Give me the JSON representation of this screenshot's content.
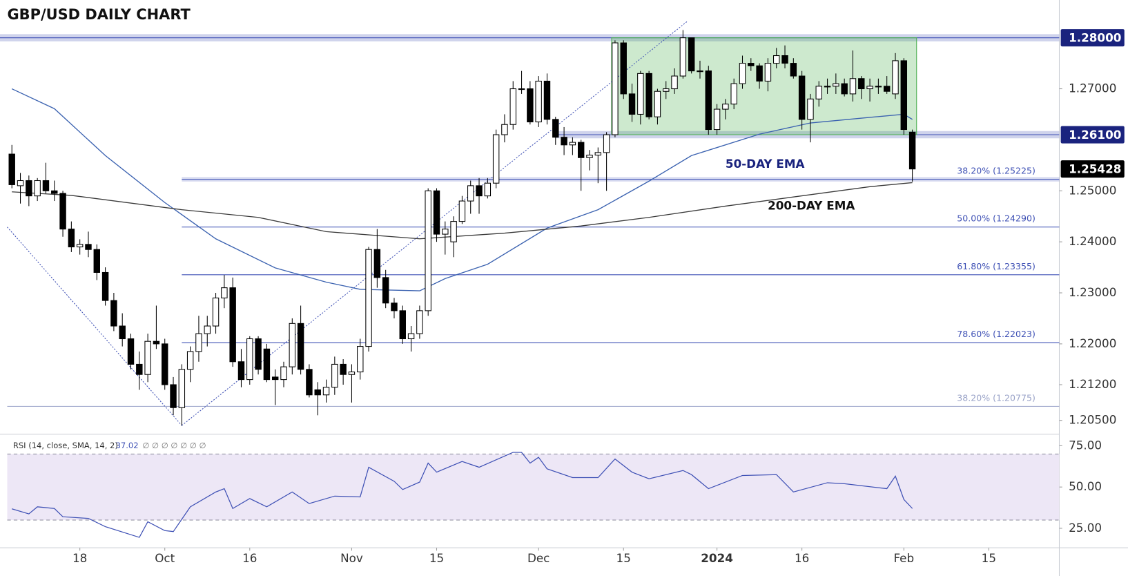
{
  "chart_data": [
    {
      "type": "candlestick",
      "title": "GBP/USD DAILY CHART",
      "up_color": "#ffffff",
      "down_color": "#000000",
      "xlim": [
        -1.4,
        123.3
      ],
      "ylim": [
        1.2023,
        1.2874
      ],
      "xticks": [
        {
          "value": 8,
          "label": "18"
        },
        {
          "value": 18,
          "label": "Oct"
        },
        {
          "value": 28,
          "label": "16"
        },
        {
          "value": 40,
          "label": "Nov"
        },
        {
          "value": 50,
          "label": "15"
        },
        {
          "value": 62,
          "label": "Dec"
        },
        {
          "value": 72,
          "label": "15"
        },
        {
          "value": 83,
          "label": "2024"
        },
        {
          "value": 93,
          "label": "16"
        },
        {
          "value": 105,
          "label": "Feb"
        },
        {
          "value": 115,
          "label": "15"
        }
      ],
      "yticks": [
        {
          "value": 1.27,
          "label": "1.27000"
        },
        {
          "value": 1.25,
          "label": "1.25000"
        },
        {
          "value": 1.24,
          "label": "1.24000"
        },
        {
          "value": 1.23,
          "label": "1.23000"
        },
        {
          "value": 1.22,
          "label": "1.22000"
        },
        {
          "value": 1.212,
          "label": "1.21200"
        },
        {
          "value": 1.205,
          "label": "1.20500"
        }
      ],
      "levels": [
        {
          "value": 1.28,
          "label": "1.28000"
        },
        {
          "value": 1.261,
          "label": "1.26100"
        }
      ],
      "last_price": {
        "value": 1.25428,
        "label": "1.25428"
      },
      "fib_levels": [
        {
          "value": 1.25225,
          "label": "38.20% (1.25225)",
          "color": "#3f51b5"
        },
        {
          "value": 1.2429,
          "label": "50.00% (1.24290)",
          "color": "#3f51b5"
        },
        {
          "value": 1.23355,
          "label": "61.80% (1.23355)",
          "color": "#3f51b5"
        },
        {
          "value": 1.22023,
          "label": "78.60% (1.22023)",
          "color": "#3f51b5"
        },
        {
          "value": 1.20775,
          "label": "38.20% (1.20775)",
          "color": "#9aa3c8"
        }
      ],
      "lines": [
        {
          "name": "50-DAY EMA",
          "color": "#3b62b0",
          "x": [
            0,
            5,
            11,
            18,
            24,
            31,
            37,
            41,
            48,
            51,
            56,
            63,
            69,
            75,
            80,
            88,
            94,
            101,
            105,
            106
          ],
          "values": [
            1.27,
            1.2661,
            1.2569,
            1.2477,
            1.2406,
            1.2349,
            1.2321,
            1.2307,
            1.2304,
            1.2328,
            1.2356,
            1.2427,
            1.2463,
            1.2519,
            1.2569,
            1.2611,
            1.2633,
            1.2644,
            1.265,
            1.264
          ]
        },
        {
          "name": "200-DAY EMA",
          "color": "#3a3a3a",
          "x": [
            0,
            7,
            20,
            29,
            37,
            48,
            58,
            67,
            75,
            84,
            92,
            101,
            106
          ],
          "values": [
            1.2498,
            1.2491,
            1.2463,
            1.2448,
            1.242,
            1.2406,
            1.2417,
            1.2431,
            1.2448,
            1.247,
            1.2488,
            1.2508,
            1.2516
          ]
        }
      ],
      "candles": [
        [
          1.2572,
          1.259,
          1.2505,
          1.2512
        ],
        [
          1.251,
          1.2535,
          1.2475,
          1.252
        ],
        [
          1.252,
          1.253,
          1.247,
          1.249
        ],
        [
          1.249,
          1.2525,
          1.248,
          1.252
        ],
        [
          1.252,
          1.2555,
          1.2495,
          1.25
        ],
        [
          1.25,
          1.252,
          1.248,
          1.2495
        ],
        [
          1.2495,
          1.25,
          1.241,
          1.2425
        ],
        [
          1.2425,
          1.244,
          1.238,
          1.239
        ],
        [
          1.239,
          1.2405,
          1.2375,
          1.2395
        ],
        [
          1.2395,
          1.242,
          1.237,
          1.2385
        ],
        [
          1.2385,
          1.2395,
          1.2325,
          1.234
        ],
        [
          1.234,
          1.235,
          1.2275,
          1.2285
        ],
        [
          1.2285,
          1.23,
          1.2225,
          1.2235
        ],
        [
          1.2235,
          1.226,
          1.2195,
          1.221
        ],
        [
          1.221,
          1.222,
          1.215,
          1.216
        ],
        [
          1.216,
          1.2185,
          1.211,
          1.214
        ],
        [
          1.214,
          1.222,
          1.2125,
          1.2205
        ],
        [
          1.2205,
          1.2275,
          1.219,
          1.22
        ],
        [
          1.22,
          1.221,
          1.211,
          1.212
        ],
        [
          1.212,
          1.2135,
          1.206,
          1.2075
        ],
        [
          1.2075,
          1.216,
          1.204,
          1.215
        ],
        [
          1.215,
          1.2195,
          1.2125,
          1.2185
        ],
        [
          1.2185,
          1.2255,
          1.2165,
          1.222
        ],
        [
          1.222,
          1.2255,
          1.2195,
          1.2235
        ],
        [
          1.2235,
          1.23,
          1.222,
          1.229
        ],
        [
          1.229,
          1.2335,
          1.227,
          1.231
        ],
        [
          1.231,
          1.233,
          1.2155,
          1.2165
        ],
        [
          1.2165,
          1.219,
          1.2115,
          1.213
        ],
        [
          1.213,
          1.2215,
          1.212,
          1.221
        ],
        [
          1.221,
          1.2215,
          1.214,
          1.215
        ],
        [
          1.219,
          1.22,
          1.2125,
          1.213
        ],
        [
          1.2135,
          1.215,
          1.208,
          1.213
        ],
        [
          1.213,
          1.2165,
          1.2115,
          1.2155
        ],
        [
          1.2155,
          1.225,
          1.214,
          1.224
        ],
        [
          1.224,
          1.2275,
          1.214,
          1.215
        ],
        [
          1.215,
          1.216,
          1.2095,
          1.21
        ],
        [
          1.211,
          1.2125,
          1.206,
          1.21
        ],
        [
          1.21,
          1.213,
          1.2085,
          1.2115
        ],
        [
          1.2115,
          1.2175,
          1.21,
          1.216
        ],
        [
          1.216,
          1.217,
          1.212,
          1.214
        ],
        [
          1.214,
          1.216,
          1.2085,
          1.2145
        ],
        [
          1.2145,
          1.221,
          1.213,
          1.2195
        ],
        [
          1.2195,
          1.239,
          1.2185,
          1.2385
        ],
        [
          1.2385,
          1.2425,
          1.231,
          1.233
        ],
        [
          1.233,
          1.2345,
          1.227,
          1.228
        ],
        [
          1.228,
          1.229,
          1.225,
          1.2265
        ],
        [
          1.2265,
          1.2275,
          1.22,
          1.221
        ],
        [
          1.221,
          1.2235,
          1.2185,
          1.222
        ],
        [
          1.222,
          1.2275,
          1.221,
          1.2265
        ],
        [
          1.2265,
          1.2505,
          1.2255,
          1.25
        ],
        [
          1.25,
          1.2505,
          1.24,
          1.2415
        ],
        [
          1.2415,
          1.244,
          1.2375,
          1.2425
        ],
        [
          1.24,
          1.245,
          1.237,
          1.244
        ],
        [
          1.244,
          1.249,
          1.2435,
          1.248
        ],
        [
          1.248,
          1.252,
          1.2455,
          1.251
        ],
        [
          1.251,
          1.2525,
          1.2455,
          1.249
        ],
        [
          1.249,
          1.2525,
          1.2485,
          1.2515
        ],
        [
          1.2515,
          1.262,
          1.2505,
          1.261
        ],
        [
          1.261,
          1.265,
          1.2595,
          1.263
        ],
        [
          1.263,
          1.2715,
          1.262,
          1.27
        ],
        [
          1.27,
          1.2735,
          1.269,
          1.27
        ],
        [
          1.27,
          1.2715,
          1.263,
          1.2635
        ],
        [
          1.2635,
          1.2725,
          1.2625,
          1.2715
        ],
        [
          1.2715,
          1.273,
          1.263,
          1.264
        ],
        [
          1.264,
          1.2645,
          1.259,
          1.2605
        ],
        [
          1.2605,
          1.2625,
          1.257,
          1.259
        ],
        [
          1.259,
          1.2605,
          1.257,
          1.2595
        ],
        [
          1.2595,
          1.26,
          1.25,
          1.2565
        ],
        [
          1.2565,
          1.258,
          1.254,
          1.257
        ],
        [
          1.257,
          1.2585,
          1.2515,
          1.2575
        ],
        [
          1.2575,
          1.2615,
          1.25,
          1.261
        ],
        [
          1.261,
          1.2795,
          1.2605,
          1.279
        ],
        [
          1.279,
          1.2795,
          1.268,
          1.269
        ],
        [
          1.269,
          1.271,
          1.2635,
          1.265
        ],
        [
          1.265,
          1.2735,
          1.263,
          1.273
        ],
        [
          1.273,
          1.2735,
          1.264,
          1.2645
        ],
        [
          1.2645,
          1.27,
          1.263,
          1.2695
        ],
        [
          1.2695,
          1.2715,
          1.268,
          1.27
        ],
        [
          1.27,
          1.274,
          1.269,
          1.2725
        ],
        [
          1.2725,
          1.2815,
          1.272,
          1.28
        ],
        [
          1.28,
          1.28,
          1.273,
          1.2735
        ],
        [
          1.2735,
          1.2755,
          1.272,
          1.2735
        ],
        [
          1.2735,
          1.2745,
          1.261,
          1.262
        ],
        [
          1.262,
          1.267,
          1.261,
          1.266
        ],
        [
          1.266,
          1.268,
          1.264,
          1.267
        ],
        [
          1.267,
          1.272,
          1.266,
          1.271
        ],
        [
          1.271,
          1.2765,
          1.27,
          1.275
        ],
        [
          1.275,
          1.276,
          1.2735,
          1.2745
        ],
        [
          1.2745,
          1.275,
          1.27,
          1.2715
        ],
        [
          1.2715,
          1.276,
          1.2695,
          1.275
        ],
        [
          1.275,
          1.278,
          1.274,
          1.2765
        ],
        [
          1.2765,
          1.2785,
          1.274,
          1.275
        ],
        [
          1.275,
          1.276,
          1.272,
          1.2725
        ],
        [
          1.2725,
          1.2735,
          1.262,
          1.264
        ],
        [
          1.264,
          1.269,
          1.2595,
          1.268
        ],
        [
          1.268,
          1.2715,
          1.2665,
          1.2705
        ],
        [
          1.2705,
          1.272,
          1.269,
          1.2705
        ],
        [
          1.2705,
          1.273,
          1.269,
          1.271
        ],
        [
          1.271,
          1.272,
          1.2685,
          1.269
        ],
        [
          1.269,
          1.2775,
          1.2675,
          1.272
        ],
        [
          1.272,
          1.2725,
          1.268,
          1.27
        ],
        [
          1.27,
          1.272,
          1.2675,
          1.2705
        ],
        [
          1.2705,
          1.272,
          1.269,
          1.2705
        ],
        [
          1.2705,
          1.2725,
          1.269,
          1.2695
        ],
        [
          1.269,
          1.277,
          1.268,
          1.2755
        ],
        [
          1.2755,
          1.276,
          1.261,
          1.262
        ],
        [
          1.2615,
          1.262,
          1.2518,
          1.25428
        ]
      ]
    },
    {
      "type": "line",
      "title": "RSI (14, close, SMA, 14, 2)",
      "last_value": 37.02,
      "status": "∅ ∅ ∅ ∅ ∅ ∅ ∅",
      "xlim": [
        -1.4,
        123.3
      ],
      "ylim": [
        13.2,
        80.7
      ],
      "yticks": [
        {
          "value": 75,
          "label": "75.00"
        },
        {
          "value": 50,
          "label": "50.00"
        },
        {
          "value": 25,
          "label": "25.00"
        }
      ],
      "bands": [
        30,
        70
      ],
      "band_color": "#ede7f6",
      "series": [
        {
          "color": "#3f51b5",
          "x": [
            0,
            2,
            3,
            5,
            6,
            9,
            11,
            15,
            16,
            18,
            19,
            21,
            24,
            25,
            26,
            28,
            30,
            33,
            35,
            38,
            41,
            42,
            45,
            46,
            48,
            49,
            50,
            53,
            55,
            59,
            60,
            61,
            62,
            63,
            66,
            69,
            71,
            73,
            75,
            79,
            80,
            82,
            86,
            90,
            92,
            96,
            98,
            103,
            104,
            105,
            106
          ],
          "values": [
            36.8,
            33.7,
            38,
            37,
            32,
            31,
            26,
            19.5,
            29,
            23.6,
            23,
            38,
            47,
            49,
            37,
            43,
            38,
            47,
            40,
            44.5,
            44,
            62,
            53.5,
            48.5,
            53,
            64.5,
            59,
            65.5,
            62,
            71,
            71,
            64.5,
            68,
            61,
            55.7,
            55.7,
            67,
            59,
            55,
            60,
            57.5,
            49,
            57,
            57.5,
            47,
            52.6,
            52,
            49,
            56.6,
            42.5,
            37.02
          ]
        }
      ]
    }
  ]
}
